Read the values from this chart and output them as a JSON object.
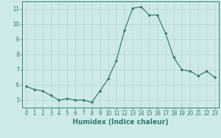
{
  "x": [
    0,
    1,
    2,
    3,
    4,
    5,
    6,
    7,
    8,
    9,
    10,
    11,
    12,
    13,
    14,
    15,
    16,
    17,
    18,
    19,
    20,
    21,
    22,
    23
  ],
  "y": [
    5.9,
    5.7,
    5.6,
    5.3,
    5.0,
    5.1,
    5.0,
    5.0,
    4.85,
    5.6,
    6.4,
    7.6,
    9.6,
    11.05,
    11.15,
    10.6,
    10.6,
    9.4,
    7.8,
    7.0,
    6.9,
    6.6,
    6.9,
    6.5
  ],
  "xlabel": "Humidex (Indice chaleur)",
  "ylim": [
    4.5,
    11.5
  ],
  "xlim": [
    -0.5,
    23.5
  ],
  "yticks": [
    5,
    6,
    7,
    8,
    9,
    10,
    11
  ],
  "xticks": [
    0,
    1,
    2,
    3,
    4,
    5,
    6,
    7,
    8,
    9,
    10,
    11,
    12,
    13,
    14,
    15,
    16,
    17,
    18,
    19,
    20,
    21,
    22,
    23
  ],
  "line_color": "#2d7a6e",
  "marker": "D",
  "marker_size": 1.8,
  "bg_color": "#ceeae8",
  "grid_color": "#b0d4d0",
  "axis_color": "#2d7a6e",
  "tick_color": "#2d7a6e",
  "label_color": "#2d7a6e",
  "xlabel_fontsize": 7,
  "tick_fontsize": 5.5,
  "linewidth": 0.9
}
